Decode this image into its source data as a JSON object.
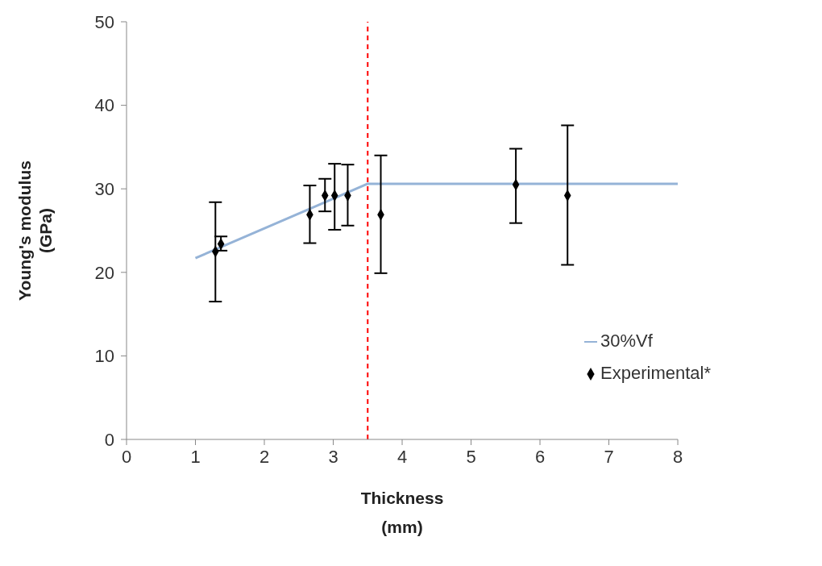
{
  "chart_data": {
    "type": "scatter",
    "xlabel": "Thickness\n(mm)",
    "ylabel": "Young's modulus\n(GPa)",
    "xlim": [
      0,
      8
    ],
    "xticks": [
      0,
      1,
      2,
      3,
      4,
      5,
      6,
      7,
      8
    ],
    "ylim": [
      0,
      50
    ],
    "yticks": [
      0,
      10,
      20,
      30,
      40,
      50
    ],
    "grid": false,
    "legend": "right",
    "series": [
      {
        "name": "30%Vf",
        "type": "line",
        "color": "#95b3d7",
        "x": [
          1,
          3.5,
          8
        ],
        "values": [
          21.7,
          30.6,
          30.6
        ]
      },
      {
        "name": "Experimental*",
        "marker": "diamond",
        "color": "#000000",
        "x": [
          1.29,
          1.37,
          2.66,
          2.88,
          3.02,
          3.21,
          3.69,
          5.65,
          6.4
        ],
        "values": [
          22.5,
          23.4,
          26.9,
          29.2,
          29.2,
          29.2,
          26.9,
          30.5,
          29.2
        ],
        "errors": [
          [
            16.5,
            28.4
          ],
          [
            22.6,
            24.3
          ],
          [
            23.5,
            30.4
          ],
          [
            27.3,
            31.2
          ],
          [
            25.1,
            33.0
          ],
          [
            25.6,
            32.9
          ],
          [
            19.9,
            34.0
          ],
          [
            25.9,
            34.8
          ],
          [
            20.9,
            37.6
          ]
        ]
      }
    ],
    "ref_lines": [
      {
        "axis": "x",
        "value": 3.5,
        "color": "#ff0000",
        "line_style": "dashed"
      }
    ]
  }
}
